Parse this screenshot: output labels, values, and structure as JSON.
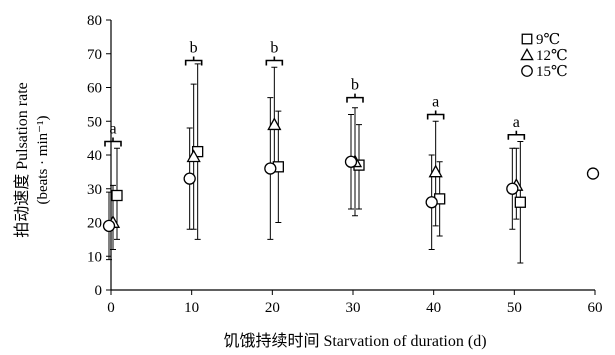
{
  "chart_data": {
    "type": "scatter",
    "xlabel": "饥饿持续时间 Starvation of duration (d)",
    "ylabel": "拍动速度 Pulsation rate",
    "ylabel_unit": "(beats · min⁻¹)",
    "xlim": [
      0,
      60
    ],
    "ylim": [
      0,
      80
    ],
    "x_ticks": [
      "0",
      "10",
      "20",
      "30",
      "40",
      "50",
      "60"
    ],
    "y_ticks": [
      "0",
      "10",
      "20",
      "30",
      "40",
      "50",
      "60",
      "70",
      "80"
    ],
    "grid": false,
    "legend_position": "top-right",
    "series": [
      {
        "name": "9℃",
        "marker": "square",
        "points": [
          {
            "x": 0,
            "y": 28,
            "err_low": 15,
            "err_high": 42
          },
          {
            "x": 10,
            "y": 41,
            "err_low": 15,
            "err_high": 67
          },
          {
            "x": 20,
            "y": 36.5,
            "err_low": 20,
            "err_high": 53
          },
          {
            "x": 30,
            "y": 37,
            "err_low": 24,
            "err_high": 49
          },
          {
            "x": 40,
            "y": 27,
            "err_low": 16,
            "err_high": 38
          },
          {
            "x": 50,
            "y": 26,
            "err_low": 8,
            "err_high": 44
          }
        ]
      },
      {
        "name": "12℃",
        "marker": "triangle",
        "points": [
          {
            "x": 0,
            "y": 20,
            "err_low": 12,
            "err_high": 31
          },
          {
            "x": 10,
            "y": 39.5,
            "err_low": 18,
            "err_high": 61
          },
          {
            "x": 20,
            "y": 49,
            "err_low": 35,
            "err_high": 66
          },
          {
            "x": 30,
            "y": 38,
            "err_low": 22,
            "err_high": 54
          },
          {
            "x": 40,
            "y": 35,
            "err_low": 19,
            "err_high": 50
          },
          {
            "x": 50,
            "y": 31,
            "err_low": 21,
            "err_high": 42
          }
        ]
      },
      {
        "name": "15℃",
        "marker": "circle",
        "points": [
          {
            "x": 0,
            "y": 19,
            "err_low": 9,
            "err_high": 29
          },
          {
            "x": 10,
            "y": 33,
            "err_low": 18,
            "err_high": 48
          },
          {
            "x": 20,
            "y": 36,
            "err_low": 15,
            "err_high": 57
          },
          {
            "x": 30,
            "y": 38,
            "err_low": 24,
            "err_high": 52
          },
          {
            "x": 40,
            "y": 26,
            "err_low": 12,
            "err_high": 40
          },
          {
            "x": 50,
            "y": 30,
            "err_low": 18,
            "err_high": 42
          },
          {
            "x": 60,
            "y": 34.5
          }
        ]
      }
    ],
    "annotations": [
      {
        "x": 0,
        "text": "a",
        "y": 44
      },
      {
        "x": 10,
        "text": "b",
        "y": 68
      },
      {
        "x": 20,
        "text": "b",
        "y": 68
      },
      {
        "x": 30,
        "text": "b",
        "y": 57
      },
      {
        "x": 40,
        "text": "a",
        "y": 52
      },
      {
        "x": 50,
        "text": "a",
        "y": 46
      }
    ]
  }
}
